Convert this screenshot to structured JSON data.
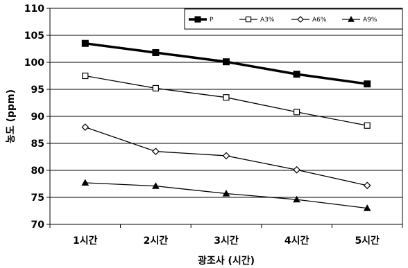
{
  "chart_data": {
    "type": "line",
    "categories": [
      "1시간",
      "2시간",
      "3시간",
      "4시간",
      "5시간"
    ],
    "series": [
      {
        "name": "P",
        "values": [
          103.5,
          101.8,
          100.1,
          97.8,
          96.0
        ],
        "marker": "square-filled",
        "color": "#000000"
      },
      {
        "name": "A3%",
        "values": [
          97.5,
          95.2,
          93.5,
          90.8,
          88.3
        ],
        "marker": "square-open",
        "color": "#000000"
      },
      {
        "name": "A6%",
        "values": [
          88.0,
          83.5,
          82.7,
          80.1,
          77.2
        ],
        "marker": "diamond-open",
        "color": "#000000"
      },
      {
        "name": "A9%",
        "values": [
          77.7,
          77.1,
          75.7,
          74.6,
          73.0
        ],
        "marker": "triangle-filled",
        "color": "#000000"
      }
    ],
    "xlabel": "광조사 (시간)",
    "ylabel": "농도 (ppm)",
    "ylim": [
      70,
      110
    ],
    "yticks": [
      70,
      75,
      80,
      85,
      90,
      95,
      100,
      105,
      110
    ],
    "grid": true,
    "legend_position": "top-right"
  }
}
